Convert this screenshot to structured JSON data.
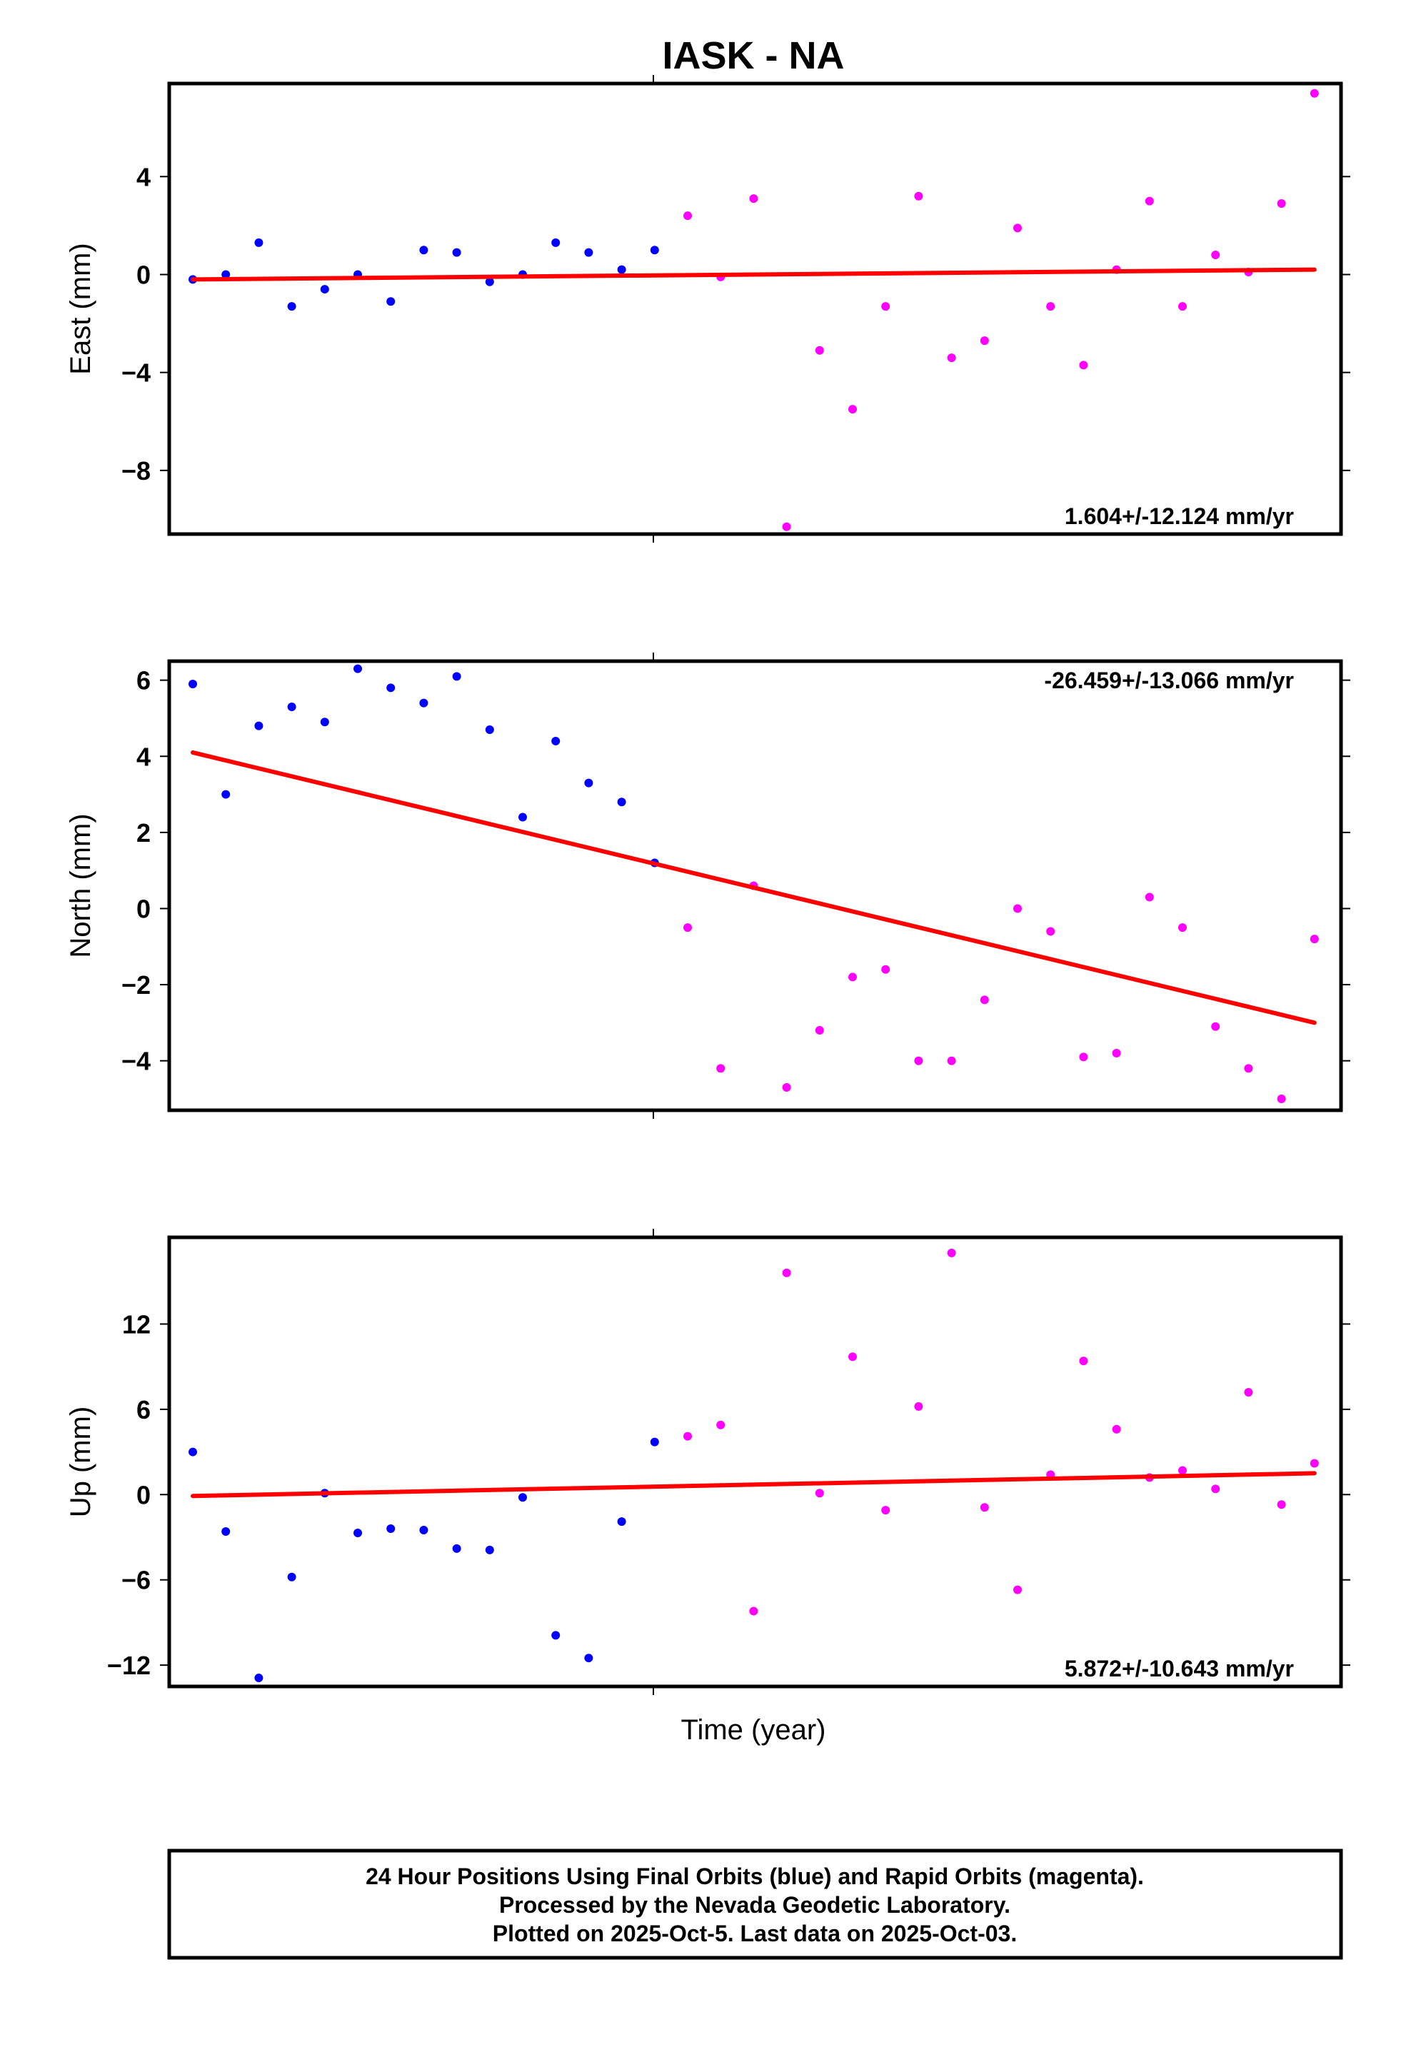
{
  "title": "IASK - NA",
  "xlabel": "Time (year)",
  "colors": {
    "final": "#0000ff",
    "rapid": "#ff00ff",
    "trend": "#ff0000",
    "frame": "#000000"
  },
  "footer": {
    "line1": "24 Hour Positions Using Final Orbits (blue) and Rapid Orbits (magenta).",
    "line2": "Processed by the Nevada Geodetic Laboratory.",
    "line3": "Plotted on 2025-Oct-5. Last data on 2025-Oct-03."
  },
  "chart_data": [
    {
      "type": "scatter",
      "ylabel": "East (mm)",
      "rate_text": "1.604+/-12.124 mm/yr",
      "rate_position": "bottom-right",
      "ylim": [
        -10.6,
        7.8
      ],
      "yticks": [
        4,
        0,
        -4,
        -8
      ],
      "ytick_labels": [
        "4",
        "0",
        "−4",
        "−8"
      ],
      "trend": [
        -0.2,
        0.2
      ],
      "series": [
        {
          "orbit": "final",
          "values": [
            -0.2,
            0.0,
            1.3,
            -1.3,
            -0.6,
            0.0,
            -1.1,
            1.0,
            0.9,
            -0.3,
            0.0,
            1.3,
            0.9,
            0.2,
            1.0
          ]
        },
        {
          "orbit": "rapid",
          "values": [
            2.4,
            -0.1,
            3.1,
            -10.3,
            -3.1,
            -5.5,
            -1.3,
            3.2,
            -3.4,
            -2.7,
            1.9,
            -1.3,
            -3.7,
            0.2,
            3.0,
            -1.3,
            0.8,
            0.1,
            2.9,
            7.4
          ]
        }
      ]
    },
    {
      "type": "scatter",
      "ylabel": "North (mm)",
      "rate_text": "-26.459+/-13.066 mm/yr",
      "rate_position": "top-right",
      "ylim": [
        -5.3,
        6.5
      ],
      "yticks": [
        6,
        4,
        2,
        0,
        -2,
        -4
      ],
      "ytick_labels": [
        "6",
        "4",
        "2",
        "0",
        "−2",
        "−4"
      ],
      "trend": [
        4.1,
        -3.0
      ],
      "series": [
        {
          "orbit": "final",
          "values": [
            5.9,
            3.0,
            4.8,
            5.3,
            4.9,
            6.3,
            5.8,
            5.4,
            6.1,
            4.7,
            2.4,
            4.4,
            3.3,
            2.8,
            1.2
          ]
        },
        {
          "orbit": "rapid",
          "values": [
            -0.5,
            -4.2,
            0.6,
            -4.7,
            -3.2,
            -1.8,
            -1.6,
            -4.0,
            -4.0,
            -2.4,
            0.0,
            -0.6,
            -3.9,
            -3.8,
            0.3,
            -0.5,
            -3.1,
            -4.2,
            -5.0,
            -0.8
          ]
        }
      ]
    },
    {
      "type": "scatter",
      "ylabel": "Up (mm)",
      "rate_text": "5.872+/-10.643 mm/yr",
      "rate_position": "bottom-right",
      "ylim": [
        -13.5,
        18.1
      ],
      "yticks": [
        12,
        6,
        0,
        -6,
        -12
      ],
      "ytick_labels": [
        "12",
        "6",
        "0",
        "−6",
        "−12"
      ],
      "trend": [
        -0.1,
        1.5
      ],
      "series": [
        {
          "orbit": "final",
          "values": [
            3.0,
            -2.6,
            -12.9,
            -5.8,
            0.1,
            -2.7,
            -2.4,
            -2.5,
            -3.8,
            -3.9,
            -0.2,
            -9.9,
            -11.5,
            -1.9,
            3.7
          ]
        },
        {
          "orbit": "rapid",
          "values": [
            4.1,
            4.9,
            -8.2,
            15.6,
            0.1,
            9.7,
            -1.1,
            6.2,
            17.0,
            -0.9,
            -6.7,
            1.4,
            9.4,
            4.6,
            1.2,
            1.7,
            0.4,
            7.2,
            -0.7,
            2.2
          ]
        }
      ]
    }
  ]
}
